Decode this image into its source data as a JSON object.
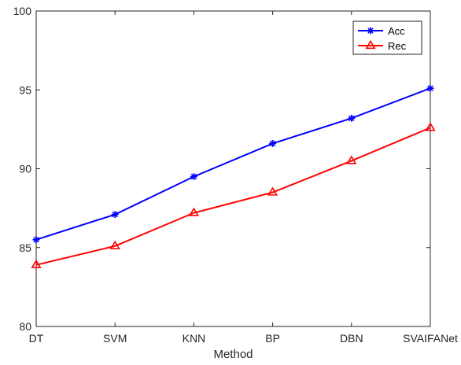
{
  "chart_data": {
    "type": "line",
    "categories": [
      "DT",
      "SVM",
      "KNN",
      "BP",
      "DBN",
      "SVAIFANet"
    ],
    "series": [
      {
        "name": "Acc",
        "values": [
          85.5,
          87.1,
          89.5,
          91.6,
          93.2,
          95.1
        ],
        "color": "#0000ff",
        "marker": "asterisk"
      },
      {
        "name": "Rec",
        "values": [
          83.9,
          85.1,
          87.2,
          88.5,
          90.5,
          92.6
        ],
        "color": "#ff0000",
        "marker": "triangle"
      }
    ],
    "title": "",
    "xlabel": "Method",
    "ylabel": "",
    "ylim": [
      80,
      100
    ],
    "yticks": [
      80,
      85,
      90,
      95,
      100
    ],
    "grid": false,
    "legend_position": "top-right",
    "box": true
  }
}
